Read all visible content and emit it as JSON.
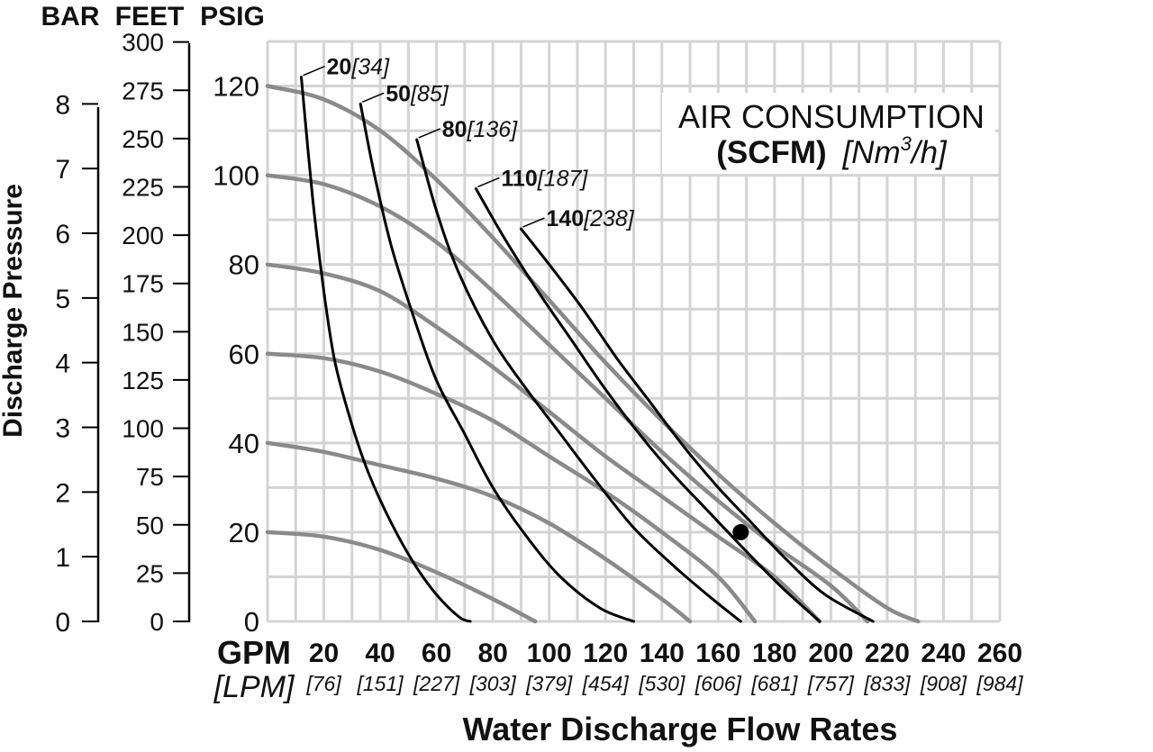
{
  "chart_data": {
    "type": "line",
    "xlabel": "Water Discharge Flow Rates",
    "ylabel": "Discharge Pressure",
    "x_axis": {
      "unit_label": "GPM",
      "unit_label_alt": "[LPM]",
      "ticks": [
        {
          "gpm": "20",
          "lpm": "[76]"
        },
        {
          "gpm": "40",
          "lpm": "[151]"
        },
        {
          "gpm": "60",
          "lpm": "[227]"
        },
        {
          "gpm": "80",
          "lpm": "[303]"
        },
        {
          "gpm": "100",
          "lpm": "[379]"
        },
        {
          "gpm": "120",
          "lpm": "[454]"
        },
        {
          "gpm": "140",
          "lpm": "[530]"
        },
        {
          "gpm": "160",
          "lpm": "[606]"
        },
        {
          "gpm": "180",
          "lpm": "[681]"
        },
        {
          "gpm": "200",
          "lpm": "[757]"
        },
        {
          "gpm": "220",
          "lpm": "[833]"
        },
        {
          "gpm": "240",
          "lpm": "[908]"
        },
        {
          "gpm": "260",
          "lpm": "[984]"
        }
      ],
      "xlim": [
        0,
        260
      ]
    },
    "y_axes": {
      "bar": {
        "label": "BAR",
        "ticks": [
          "0",
          "1",
          "2",
          "3",
          "4",
          "5",
          "6",
          "7",
          "8"
        ]
      },
      "feet": {
        "label": "FEET",
        "ticks": [
          "0",
          "25",
          "50",
          "75",
          "100",
          "125",
          "150",
          "175",
          "200",
          "225",
          "250",
          "275",
          "300"
        ]
      },
      "psig": {
        "label": "PSIG",
        "ticks": [
          "0",
          "20",
          "40",
          "60",
          "80",
          "100",
          "120"
        ],
        "ylim": [
          0,
          130
        ]
      }
    },
    "grid": true,
    "legend_box": {
      "title_line1": "AIR CONSUMPTION",
      "title_bold": "(SCFM)",
      "title_unit_main": "[Nm",
      "title_unit_sup": "3",
      "title_unit_end": "/h]",
      "placement": "top-right"
    },
    "pressure_curves": [
      {
        "points": [
          [
            0,
            120
          ],
          [
            20,
            117
          ],
          [
            40,
            110
          ],
          [
            60,
            99
          ],
          [
            80,
            86
          ],
          [
            100,
            72
          ],
          [
            120,
            58
          ],
          [
            140,
            45
          ],
          [
            160,
            33
          ],
          [
            180,
            22
          ],
          [
            200,
            12
          ],
          [
            220,
            3
          ],
          [
            231,
            0
          ]
        ]
      },
      {
        "points": [
          [
            0,
            100
          ],
          [
            20,
            98
          ],
          [
            40,
            93
          ],
          [
            60,
            85
          ],
          [
            80,
            74
          ],
          [
            100,
            62
          ],
          [
            120,
            50
          ],
          [
            140,
            38
          ],
          [
            160,
            27
          ],
          [
            180,
            17
          ],
          [
            200,
            8
          ],
          [
            213,
            0
          ]
        ]
      },
      {
        "points": [
          [
            0,
            80
          ],
          [
            20,
            78
          ],
          [
            40,
            74
          ],
          [
            60,
            66
          ],
          [
            80,
            57
          ],
          [
            100,
            47
          ],
          [
            120,
            37
          ],
          [
            140,
            28
          ],
          [
            160,
            19
          ],
          [
            180,
            10
          ],
          [
            196,
            0
          ]
        ]
      },
      {
        "points": [
          [
            0,
            60
          ],
          [
            20,
            59
          ],
          [
            40,
            56
          ],
          [
            60,
            51
          ],
          [
            80,
            45
          ],
          [
            100,
            37
          ],
          [
            120,
            29
          ],
          [
            140,
            20
          ],
          [
            160,
            10
          ],
          [
            173,
            0
          ]
        ]
      },
      {
        "points": [
          [
            0,
            40
          ],
          [
            20,
            38
          ],
          [
            40,
            35
          ],
          [
            60,
            32
          ],
          [
            80,
            28
          ],
          [
            100,
            22
          ],
          [
            120,
            14
          ],
          [
            140,
            5
          ],
          [
            150,
            0
          ]
        ]
      },
      {
        "points": [
          [
            0,
            20
          ],
          [
            20,
            19
          ],
          [
            40,
            16
          ],
          [
            60,
            11
          ],
          [
            80,
            5
          ],
          [
            95,
            0
          ]
        ]
      }
    ],
    "air_curves": [
      {
        "label_bold": "20",
        "label_italic": "[34]",
        "points": [
          [
            12,
            122
          ],
          [
            16,
            95
          ],
          [
            20,
            74
          ],
          [
            24,
            58
          ],
          [
            30,
            44
          ],
          [
            36,
            33
          ],
          [
            44,
            22
          ],
          [
            52,
            13
          ],
          [
            60,
            6
          ],
          [
            68,
            1
          ],
          [
            72,
            0
          ]
        ]
      },
      {
        "label_bold": "50",
        "label_italic": "[85]",
        "points": [
          [
            33,
            116
          ],
          [
            38,
            100
          ],
          [
            44,
            84
          ],
          [
            52,
            68
          ],
          [
            60,
            54
          ],
          [
            70,
            42
          ],
          [
            80,
            30
          ],
          [
            92,
            19
          ],
          [
            104,
            10
          ],
          [
            118,
            3
          ],
          [
            130,
            0
          ]
        ]
      },
      {
        "label_bold": "80",
        "label_italic": "[136]",
        "points": [
          [
            53,
            108
          ],
          [
            60,
            92
          ],
          [
            68,
            78
          ],
          [
            80,
            63
          ],
          [
            92,
            52
          ],
          [
            104,
            42
          ],
          [
            116,
            32
          ],
          [
            130,
            21
          ],
          [
            145,
            12
          ],
          [
            158,
            5
          ],
          [
            168,
            0
          ]
        ]
      },
      {
        "label_bold": "110",
        "label_italic": "[187]",
        "points": [
          [
            74,
            97
          ],
          [
            84,
            86
          ],
          [
            96,
            74
          ],
          [
            108,
            63
          ],
          [
            120,
            52
          ],
          [
            132,
            42
          ],
          [
            144,
            33
          ],
          [
            156,
            25
          ],
          [
            168,
            17
          ],
          [
            182,
            8
          ],
          [
            196,
            0
          ]
        ]
      },
      {
        "label_bold": "140",
        "label_italic": "[238]",
        "points": [
          [
            90,
            88
          ],
          [
            100,
            80
          ],
          [
            112,
            70
          ],
          [
            124,
            59
          ],
          [
            136,
            49
          ],
          [
            148,
            39
          ],
          [
            160,
            30
          ],
          [
            172,
            22
          ],
          [
            184,
            14
          ],
          [
            198,
            6
          ],
          [
            215,
            0
          ]
        ]
      }
    ],
    "marker": {
      "x": 168,
      "y": 20
    }
  }
}
